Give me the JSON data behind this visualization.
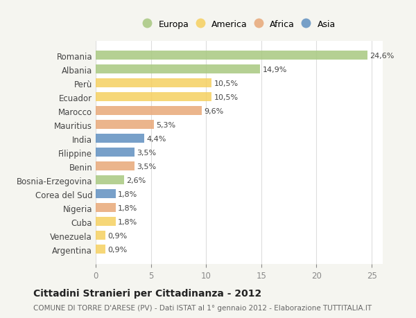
{
  "categories": [
    "Romania",
    "Albania",
    "Perù",
    "Ecuador",
    "Marocco",
    "Mauritius",
    "India",
    "Filippine",
    "Benin",
    "Bosnia-Erzegovina",
    "Corea del Sud",
    "Nigeria",
    "Cuba",
    "Venezuela",
    "Argentina"
  ],
  "values": [
    24.6,
    14.9,
    10.5,
    10.5,
    9.6,
    5.3,
    4.4,
    3.5,
    3.5,
    2.6,
    1.8,
    1.8,
    1.8,
    0.9,
    0.9
  ],
  "labels": [
    "24,6%",
    "14,9%",
    "10,5%",
    "10,5%",
    "9,6%",
    "5,3%",
    "4,4%",
    "3,5%",
    "3,5%",
    "2,6%",
    "1,8%",
    "1,8%",
    "1,8%",
    "0,9%",
    "0,9%"
  ],
  "continents": [
    "Europa",
    "Europa",
    "America",
    "America",
    "Africa",
    "Africa",
    "Asia",
    "Asia",
    "Africa",
    "Europa",
    "Asia",
    "Africa",
    "America",
    "America",
    "America"
  ],
  "colors": {
    "Europa": "#a8c880",
    "America": "#f5d060",
    "Africa": "#e8a878",
    "Asia": "#6090c0"
  },
  "legend_order": [
    "Europa",
    "America",
    "Africa",
    "Asia"
  ],
  "title": "Cittadini Stranieri per Cittadinanza - 2012",
  "subtitle": "COMUNE DI TORRE D'ARESE (PV) - Dati ISTAT al 1° gennaio 2012 - Elaborazione TUTTITALIA.IT",
  "xlim": [
    0,
    26
  ],
  "xticks": [
    0,
    5,
    10,
    15,
    20,
    25
  ],
  "bg_color": "#f5f5f0",
  "bar_bg_color": "#ffffff",
  "grid_color": "#dddddd"
}
